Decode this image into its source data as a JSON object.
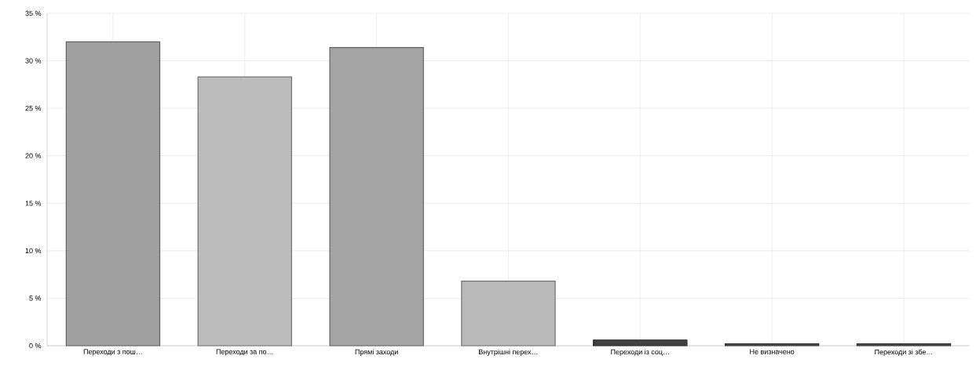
{
  "chart_data": {
    "type": "bar",
    "categories": [
      "Переходи з пош…",
      "Переходи за по…",
      "Прямі заходи",
      "Внутрішні перех…",
      "Переходи із соц…",
      "Не визначено",
      "Переходи зі збе…"
    ],
    "values": [
      32.0,
      28.3,
      31.4,
      6.8,
      0.6,
      0.2,
      0.2
    ],
    "colors": [
      "#a0a0a0",
      "#bcbcbc",
      "#a4a4a4",
      "#bababa",
      "#404040",
      "#505050",
      "#505050"
    ],
    "ylim": [
      0,
      35
    ],
    "yticks": [
      {
        "value": 0,
        "label": "0 %"
      },
      {
        "value": 5,
        "label": "5 %"
      },
      {
        "value": 10,
        "label": "10 %"
      },
      {
        "value": 15,
        "label": "15 %"
      },
      {
        "value": 20,
        "label": "20 %"
      },
      {
        "value": 25,
        "label": "25 %"
      },
      {
        "value": 30,
        "label": "30 %"
      },
      {
        "value": 35,
        "label": "35 %"
      }
    ],
    "grid": true
  }
}
